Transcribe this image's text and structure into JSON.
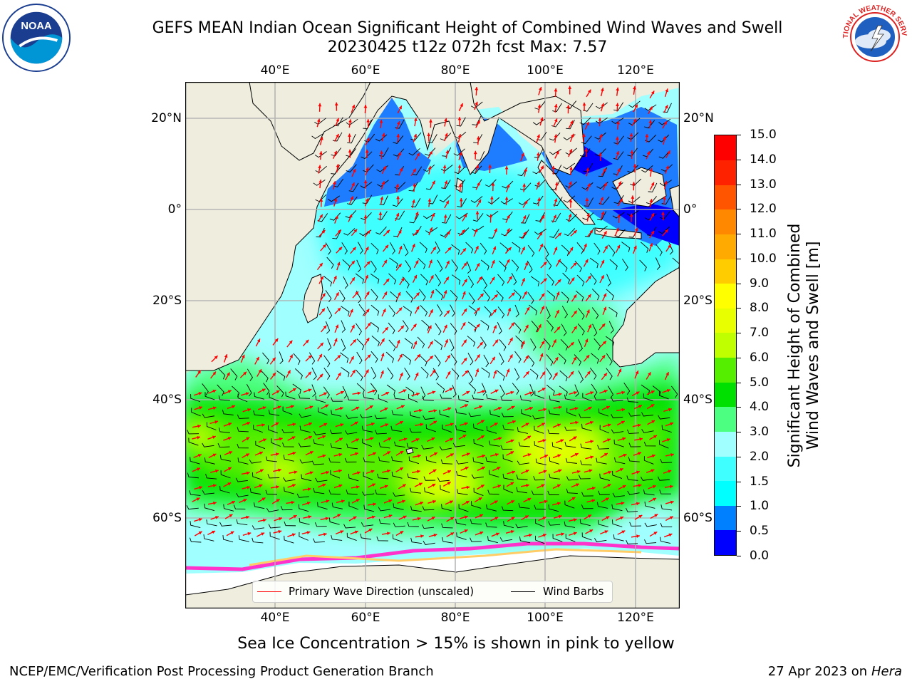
{
  "header": {
    "title_line1": "GEFS MEAN Indian Ocean Significant Height of Combined Wind Waves and Swell",
    "title_line2": "20230425 t12z 072h fcst   Max: 7.57"
  },
  "logos": {
    "left": {
      "name": "noaa-logo",
      "text": "NOAA",
      "ring_text": "NATIONAL OCEANIC AND ATMOSPHERIC ADMINISTRATION · U.S. DEPARTMENT OF COMMERCE"
    },
    "right": {
      "name": "nws-logo",
      "ring_text": "NATIONAL WEATHER SERVICE"
    }
  },
  "map": {
    "lon_ticks_top": [
      "40°E",
      "60°E",
      "80°E",
      "100°E",
      "120°E"
    ],
    "lon_ticks_bottom": [
      "40°E",
      "60°E",
      "80°E",
      "100°E",
      "120°E"
    ],
    "lat_ticks_left": [
      "20°N",
      "0°",
      "20°S",
      "40°S",
      "60°S"
    ],
    "lat_ticks_right": [
      "20°N",
      "0°",
      "20°S",
      "40°S",
      "60°S"
    ],
    "land_color": "#eeedde",
    "ice_colors": [
      "#ff33cc",
      "#ff99cc",
      "#ffcc66"
    ]
  },
  "legend": {
    "items": [
      {
        "label": "Primary Wave Direction (unscaled)",
        "color": "#ff0000"
      },
      {
        "label": "Wind Barbs",
        "color": "#000000"
      }
    ]
  },
  "colorbar": {
    "title_line1": "Significant Height of Combined",
    "title_line2": "Wind Waves and Swell [m]",
    "tick_labels": [
      "0.0",
      "0.5",
      "1.0",
      "1.5",
      "2.0",
      "3.0",
      "4.0",
      "5.0",
      "6.0",
      "7.0",
      "8.0",
      "9.0",
      "10.0",
      "11.0",
      "12.0",
      "13.0",
      "14.0",
      "15.0"
    ],
    "bin_colors": [
      "#0000ff",
      "#0080ff",
      "#00ffff",
      "#40ffff",
      "#a0ffff",
      "#4dff80",
      "#00e000",
      "#55ee00",
      "#c0ff00",
      "#e8ff00",
      "#ffff00",
      "#ffcc00",
      "#ffaa00",
      "#ff8800",
      "#ff5500",
      "#ff2200",
      "#ff0000"
    ]
  },
  "footer": {
    "caption": "Sea Ice Concentration > 15% is shown in pink to yellow",
    "left": "NCEP/EMC/Verification Post Processing Product Generation Branch",
    "right_prefix": "27 Apr 2023 on ",
    "right_host": "Hera"
  }
}
